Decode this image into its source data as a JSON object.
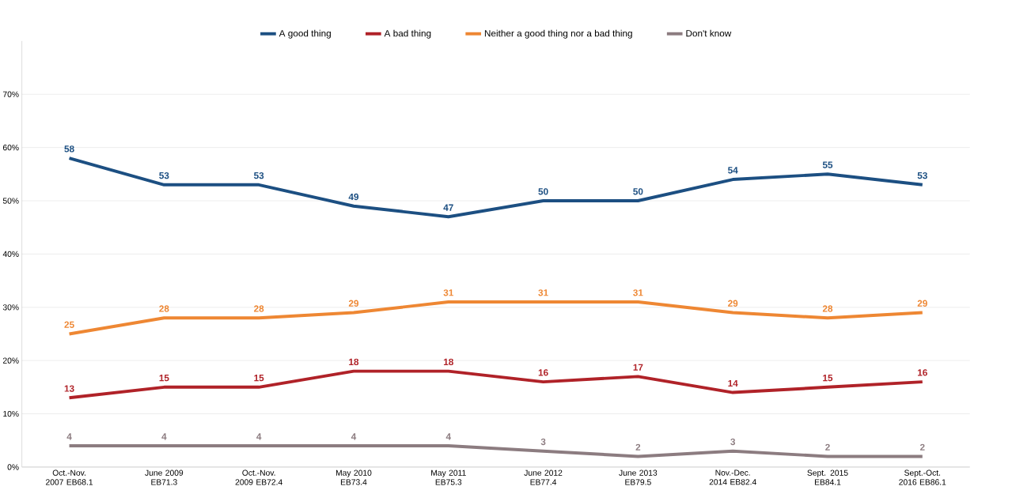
{
  "chart_data": {
    "type": "line",
    "categories": [
      "Oct.-Nov. 2007 EB68.1",
      "June 2009 EB71.3",
      "Oct.-Nov. 2009 EB72.4",
      "May 2010 EB73.4",
      "May 2011 EB75.3",
      "June 2012 EB77.4",
      "June 2013 EB79.5",
      "Nov.-Dec. 2014 EB82.4",
      "Sept. 2015 EB84.1",
      "Sept.-Oct. 2016 EB86.1"
    ],
    "series": [
      {
        "name": "A good thing",
        "color": "#1c4f82",
        "values": [
          58,
          53,
          53,
          49,
          47,
          50,
          50,
          54,
          55,
          53
        ]
      },
      {
        "name": "A bad thing",
        "color": "#b02228",
        "values": [
          13,
          15,
          15,
          18,
          18,
          16,
          17,
          14,
          15,
          16
        ]
      },
      {
        "name": "Neither a good thing nor a bad thing",
        "color": "#ee8733",
        "values": [
          25,
          28,
          28,
          29,
          31,
          31,
          31,
          29,
          28,
          29
        ]
      },
      {
        "name": "Don't know",
        "color": "#8c7c80",
        "values": [
          4,
          4,
          4,
          4,
          4,
          3,
          2,
          3,
          2,
          2
        ]
      }
    ],
    "ylim": [
      0,
      80
    ],
    "yticks": [
      {
        "value": 0,
        "label": "0%"
      },
      {
        "value": 10,
        "label": "10%"
      },
      {
        "value": 20,
        "label": "20%"
      },
      {
        "value": 30,
        "label": "30%"
      },
      {
        "value": 40,
        "label": "40%"
      },
      {
        "value": 50,
        "label": "50%"
      },
      {
        "value": 60,
        "label": "60%"
      },
      {
        "value": 70,
        "label": "70%"
      }
    ],
    "grid": "y",
    "legend": "top",
    "data_labels": true,
    "marker": "none",
    "line_style": "solid"
  }
}
